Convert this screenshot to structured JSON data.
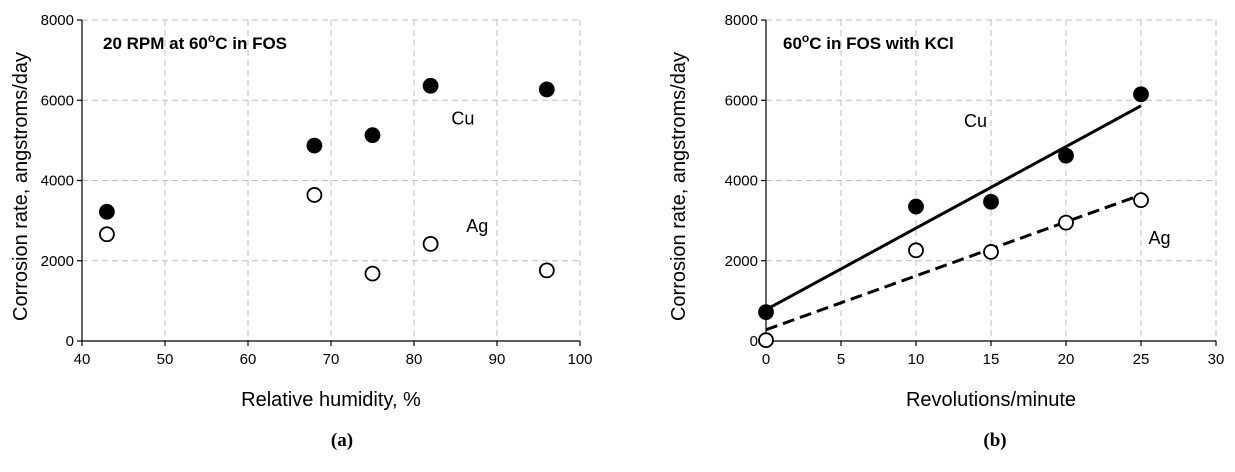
{
  "chart_data": [
    {
      "type": "scatter",
      "panel_label": "(a)",
      "annotation_parts": [
        "20 RPM at 60",
        "o",
        "C in FOS"
      ],
      "xlabel": "Relative humidity, %",
      "ylabel": "Corrosion rate, angstroms/day",
      "xlim": [
        40,
        100
      ],
      "ylim": [
        0,
        8000
      ],
      "xticks": [
        40,
        50,
        60,
        70,
        80,
        90,
        100
      ],
      "yticks": [
        0,
        2000,
        4000,
        6000,
        8000
      ],
      "grid": true,
      "series": [
        {
          "name": "Cu",
          "marker": "filled-circle",
          "x": [
            43,
            68,
            75,
            82,
            96
          ],
          "y": [
            3220,
            4870,
            5130,
            6360,
            6270
          ]
        },
        {
          "name": "Ag",
          "marker": "open-circle",
          "x": [
            43,
            68,
            75,
            82,
            96
          ],
          "y": [
            2660,
            3640,
            1680,
            2420,
            1760
          ]
        }
      ],
      "series_label_positions_data": [
        {
          "series": "Cu",
          "x": 84.5,
          "y": 5400
        },
        {
          "series": "Ag",
          "x": 86.3,
          "y": 2720
        }
      ]
    },
    {
      "type": "scatter",
      "panel_label": "(b)",
      "annotation_parts": [
        "60",
        "o",
        "C in FOS with KCl"
      ],
      "xlabel": "Revolutions/minute",
      "ylabel": "Corrosion rate, angstroms/day",
      "xlim": [
        0,
        30
      ],
      "ylim": [
        0,
        8000
      ],
      "xticks": [
        0,
        5,
        10,
        15,
        20,
        25,
        30
      ],
      "yticks": [
        0,
        2000,
        4000,
        6000,
        8000
      ],
      "grid": true,
      "series": [
        {
          "name": "Cu",
          "marker": "filled-circle",
          "x": [
            0,
            10,
            15,
            20,
            25
          ],
          "y": [
            720,
            3350,
            3470,
            4620,
            6150
          ],
          "fit": {
            "style": "solid",
            "x": [
              0,
              25
            ],
            "y": [
              780,
              5860
            ]
          }
        },
        {
          "name": "Ag",
          "marker": "open-circle",
          "x": [
            0,
            10,
            15,
            20,
            25
          ],
          "y": [
            20,
            2260,
            2220,
            2950,
            3510
          ],
          "fit": {
            "style": "dashed",
            "x": [
              0,
              25
            ],
            "y": [
              280,
              3640
            ]
          }
        }
      ],
      "series_label_positions_data": [
        {
          "series": "Cu",
          "x": 13.2,
          "y": 5330
        },
        {
          "series": "Ag",
          "x": 25.5,
          "y": 2420
        }
      ]
    }
  ]
}
